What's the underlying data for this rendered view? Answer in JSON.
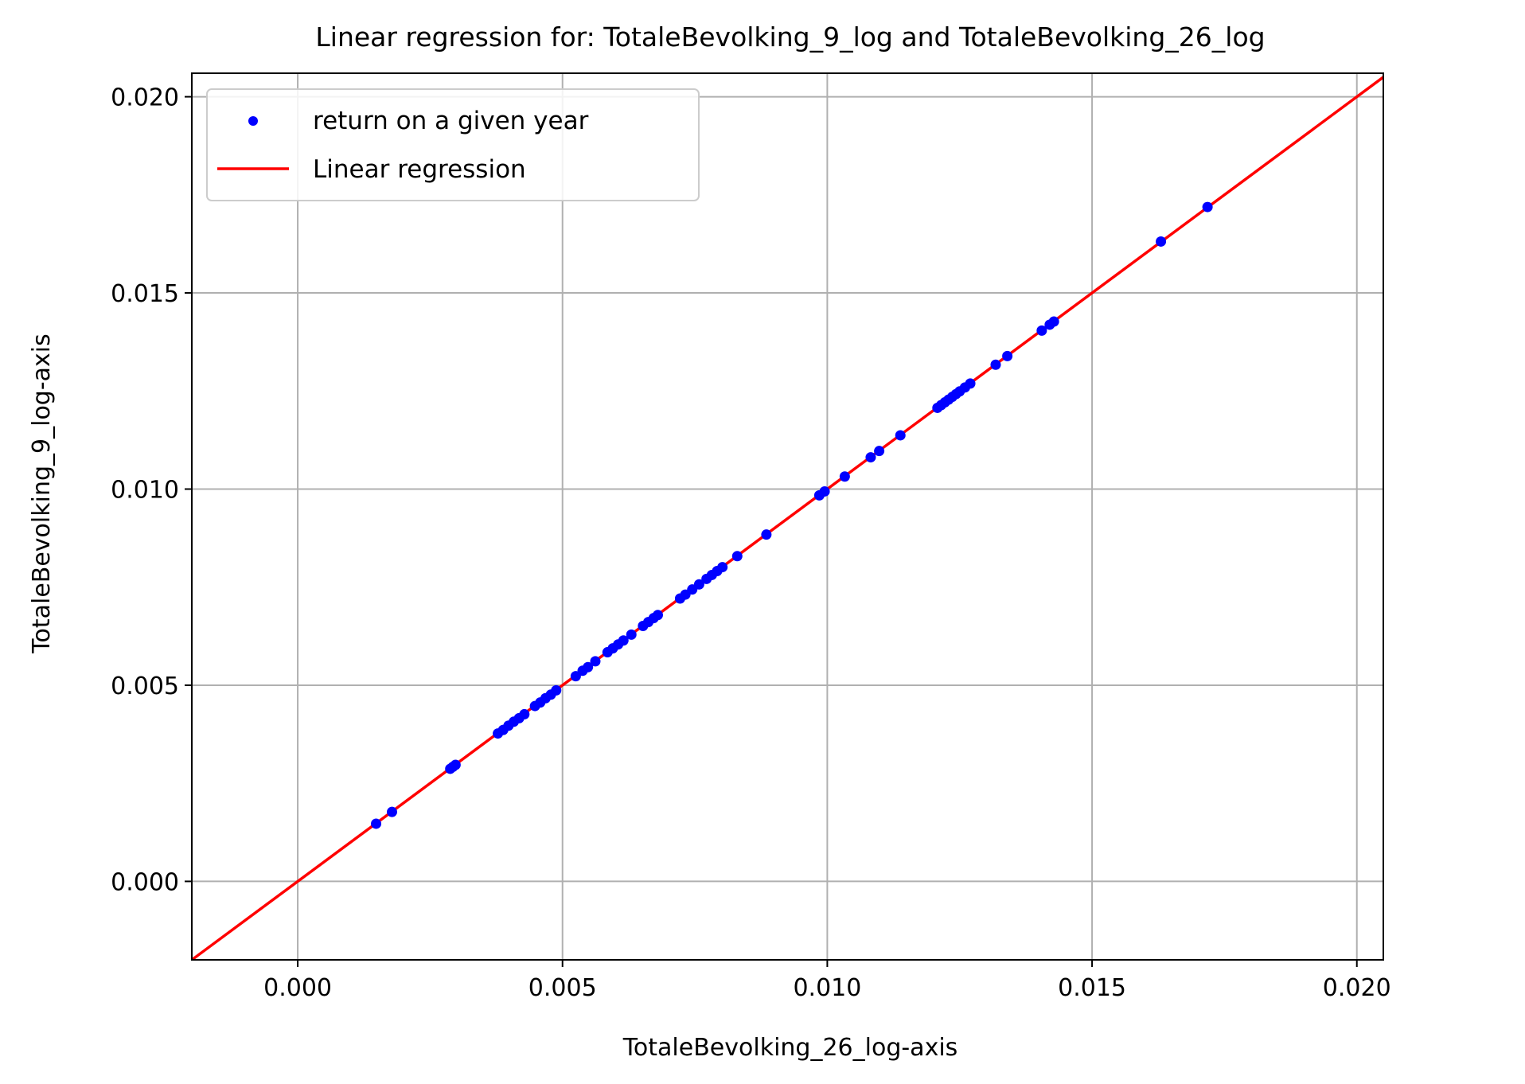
{
  "chart_data": {
    "type": "scatter",
    "title": "Linear regression for: TotaleBevolking_9_log and TotaleBevolking_26_log",
    "xlabel": "TotaleBevolking_26_log-axis",
    "ylabel": "TotaleBevolking_9_log-axis",
    "xlim": [
      -0.002,
      0.0205
    ],
    "ylim": [
      -0.002,
      0.0206
    ],
    "xticks": [
      "0.000",
      "0.005",
      "0.010",
      "0.015",
      "0.020"
    ],
    "xtick_values": [
      0.0,
      0.005,
      0.01,
      0.015,
      0.02
    ],
    "yticks": [
      "0.000",
      "0.005",
      "0.010",
      "0.015",
      "0.020"
    ],
    "ytick_values": [
      0.0,
      0.005,
      0.01,
      0.015,
      0.02
    ],
    "grid": true,
    "legend_position": "top-left",
    "series": [
      {
        "name": "return on a given year",
        "kind": "scatter",
        "color": "#0000ff",
        "points": [
          [
            0.00148,
            0.00147
          ],
          [
            0.00178,
            0.00177
          ],
          [
            0.00288,
            0.00287
          ],
          [
            0.00293,
            0.00292
          ],
          [
            0.00298,
            0.00297
          ],
          [
            0.00378,
            0.00377
          ],
          [
            0.00388,
            0.00386
          ],
          [
            0.00398,
            0.00397
          ],
          [
            0.00408,
            0.00407
          ],
          [
            0.00418,
            0.00416
          ],
          [
            0.00428,
            0.00426
          ],
          [
            0.00448,
            0.00447
          ],
          [
            0.00458,
            0.00456
          ],
          [
            0.00468,
            0.00467
          ],
          [
            0.00478,
            0.00476
          ],
          [
            0.00488,
            0.00487
          ],
          [
            0.00525,
            0.00523
          ],
          [
            0.00538,
            0.00537
          ],
          [
            0.00548,
            0.00546
          ],
          [
            0.00562,
            0.00561
          ],
          [
            0.00585,
            0.00584
          ],
          [
            0.00595,
            0.00594
          ],
          [
            0.00605,
            0.00604
          ],
          [
            0.00615,
            0.00614
          ],
          [
            0.0063,
            0.00629
          ],
          [
            0.00652,
            0.00651
          ],
          [
            0.00662,
            0.00661
          ],
          [
            0.00672,
            0.00671
          ],
          [
            0.0068,
            0.00679
          ],
          [
            0.00722,
            0.00721
          ],
          [
            0.00732,
            0.00731
          ],
          [
            0.00745,
            0.00744
          ],
          [
            0.00758,
            0.00757
          ],
          [
            0.00772,
            0.00771
          ],
          [
            0.00782,
            0.00781
          ],
          [
            0.00792,
            0.00791
          ],
          [
            0.00802,
            0.00801
          ],
          [
            0.0083,
            0.00829
          ],
          [
            0.00885,
            0.00884
          ],
          [
            0.00985,
            0.00984
          ],
          [
            0.00995,
            0.00994
          ],
          [
            0.01033,
            0.01032
          ],
          [
            0.01082,
            0.01081
          ],
          [
            0.01098,
            0.01097
          ],
          [
            0.01138,
            0.01137
          ],
          [
            0.01208,
            0.01207
          ],
          [
            0.01215,
            0.01214
          ],
          [
            0.01222,
            0.01221
          ],
          [
            0.01229,
            0.01228
          ],
          [
            0.01236,
            0.01235
          ],
          [
            0.01243,
            0.01242
          ],
          [
            0.0125,
            0.01249
          ],
          [
            0.0126,
            0.01259
          ],
          [
            0.0127,
            0.01269
          ],
          [
            0.01318,
            0.01317
          ],
          [
            0.0134,
            0.01339
          ],
          [
            0.01405,
            0.01404
          ],
          [
            0.0142,
            0.01419
          ],
          [
            0.01428,
            0.01427
          ],
          [
            0.0163,
            0.01631
          ],
          [
            0.01718,
            0.01719
          ]
        ]
      },
      {
        "name": "Linear regression",
        "kind": "line",
        "color": "#ff0000",
        "slope": 1.0,
        "intercept": 0.0
      }
    ]
  },
  "colors": {
    "grid": "#b0b0b0",
    "axes": "#000000",
    "legend_border": "#cccccc"
  }
}
